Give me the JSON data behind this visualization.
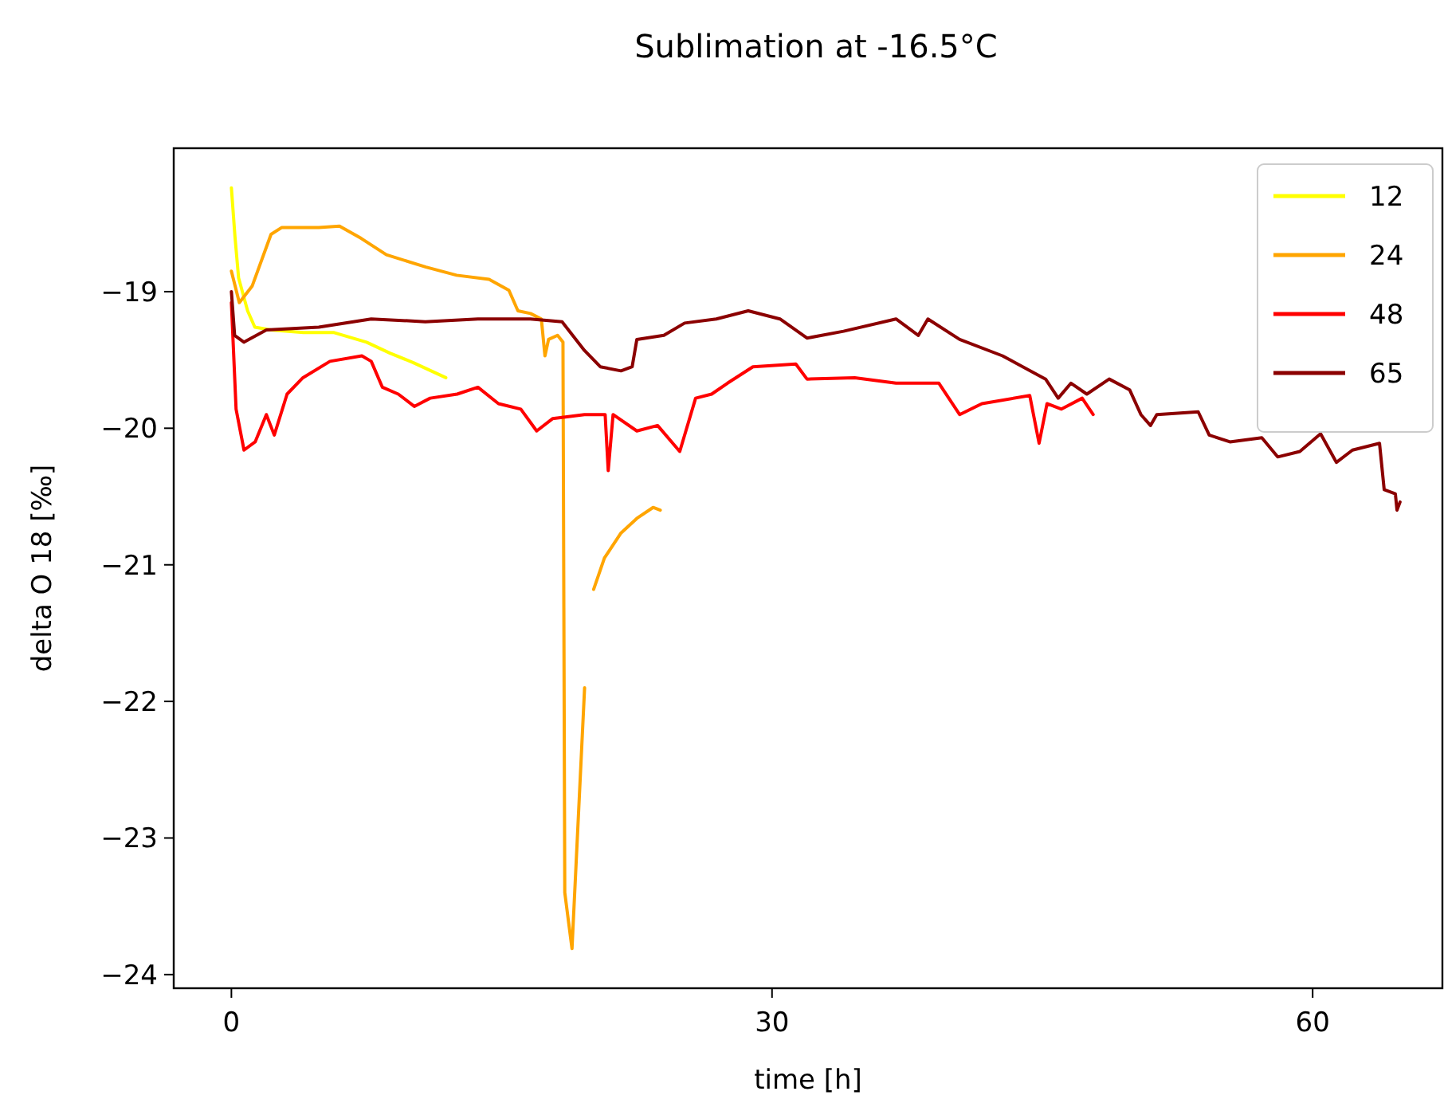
{
  "chart_data": {
    "type": "line",
    "title": "Sublimation at -16.5°C",
    "xlabel": "time [h]",
    "ylabel": "delta O 18 [‰]",
    "xlim": [
      -3.2,
      67.2
    ],
    "xticks": [
      0,
      30,
      60
    ],
    "ylim": [
      -24.1,
      -17.95
    ],
    "yticks": [
      {
        "value": -19,
        "label": "−19"
      },
      {
        "value": -20,
        "label": "−20"
      },
      {
        "value": -21,
        "label": "−21"
      },
      {
        "value": -22,
        "label": "−22"
      },
      {
        "value": -23,
        "label": "−23"
      },
      {
        "value": -24,
        "label": "−24"
      }
    ],
    "grid": false,
    "legend": "top right",
    "line_style": "solid",
    "marker": "none",
    "series": [
      {
        "name": "12",
        "color": "#ffff00",
        "x": [
          0,
          0.2,
          0.4,
          0.9,
          1.3,
          2.2,
          4,
          5.7,
          7.5,
          8.8,
          10.1,
          11.9
        ],
        "values": [
          -18.24,
          -18.6,
          -18.9,
          -19.14,
          -19.26,
          -19.28,
          -19.3,
          -19.3,
          -19.37,
          -19.45,
          -19.52,
          -19.63
        ]
      },
      {
        "name": "24",
        "color": "#ffa500",
        "x": [
          0,
          0.44,
          1.15,
          2.2,
          2.8,
          4.85,
          6.0,
          7.2,
          8.6,
          10.8,
          12.5,
          14.3,
          15.4,
          15.9,
          16.6,
          17.2,
          17.4,
          17.6,
          18.1,
          18.4,
          18.5,
          18.9,
          19.6,
          null,
          20.1,
          20.7,
          21.6,
          22.5,
          23.4,
          23.8
        ],
        "values": [
          -18.85,
          -19.08,
          -18.96,
          -18.58,
          -18.53,
          -18.53,
          -18.52,
          -18.61,
          -18.73,
          -18.82,
          -18.88,
          -18.91,
          -18.99,
          -19.14,
          -19.16,
          -19.2,
          -19.47,
          -19.35,
          -19.32,
          -19.37,
          -23.4,
          -23.81,
          -21.9,
          null,
          -21.18,
          -20.95,
          -20.77,
          -20.66,
          -20.58,
          -20.6
        ]
      },
      {
        "name": "48",
        "color": "#ff0000",
        "x": [
          0,
          0.26,
          0.7,
          1.32,
          1.94,
          2.38,
          3.09,
          3.97,
          5.47,
          7.24,
          7.76,
          8.38,
          9.26,
          10.15,
          11.03,
          12.53,
          13.68,
          14.82,
          16.06,
          16.94,
          17.82,
          19.59,
          20.74,
          20.91,
          21.18,
          22.5,
          23.65,
          24.88,
          25.76,
          26.65,
          27.53,
          28.94,
          31.32,
          31.94,
          34.59,
          36.88,
          39.26,
          40.41,
          41.65,
          44.3,
          44.82,
          45.26,
          46.06,
          47.21,
          47.82
        ],
        "values": [
          -19.08,
          -19.86,
          -20.16,
          -20.1,
          -19.9,
          -20.05,
          -19.75,
          -19.63,
          -19.51,
          -19.47,
          -19.51,
          -19.7,
          -19.75,
          -19.84,
          -19.78,
          -19.75,
          -19.7,
          -19.82,
          -19.86,
          -20.02,
          -19.93,
          -19.9,
          -19.9,
          -20.31,
          -19.9,
          -20.02,
          -19.98,
          -20.17,
          -19.78,
          -19.75,
          -19.67,
          -19.55,
          -19.53,
          -19.64,
          -19.63,
          -19.67,
          -19.67,
          -19.9,
          -19.82,
          -19.76,
          -20.11,
          -19.82,
          -19.86,
          -19.78,
          -19.9
        ]
      },
      {
        "name": "65",
        "color": "#8b0000",
        "x": [
          0,
          0.18,
          0.7,
          1.94,
          4.85,
          7.76,
          10.76,
          13.68,
          16.59,
          18.35,
          19.59,
          20.47,
          21.62,
          22.24,
          22.5,
          24.0,
          25.15,
          26.91,
          28.68,
          30.44,
          31.94,
          33.97,
          36.88,
          38.12,
          38.65,
          40.41,
          42.79,
          45.18,
          45.88,
          46.59,
          47.47,
          48.71,
          49.85,
          50.47,
          51.0,
          51.35,
          53.65,
          54.26,
          55.41,
          57.18,
          58.06,
          59.29,
          60.44,
          61.32,
          62.21,
          63.71,
          63.97,
          64.59,
          64.68,
          64.85
        ],
        "values": [
          -19.0,
          -19.32,
          -19.37,
          -19.28,
          -19.26,
          -19.2,
          -19.22,
          -19.2,
          -19.2,
          -19.22,
          -19.43,
          -19.55,
          -19.58,
          -19.55,
          -19.35,
          -19.32,
          -19.23,
          -19.2,
          -19.14,
          -19.2,
          -19.34,
          -19.29,
          -19.2,
          -19.32,
          -19.2,
          -19.35,
          -19.47,
          -19.64,
          -19.78,
          -19.67,
          -19.75,
          -19.64,
          -19.72,
          -19.9,
          -19.98,
          -19.9,
          -19.88,
          -20.05,
          -20.1,
          -20.07,
          -20.21,
          -20.17,
          -20.04,
          -20.25,
          -20.16,
          -20.11,
          -20.45,
          -20.48,
          -20.6,
          -20.54
        ]
      }
    ]
  }
}
